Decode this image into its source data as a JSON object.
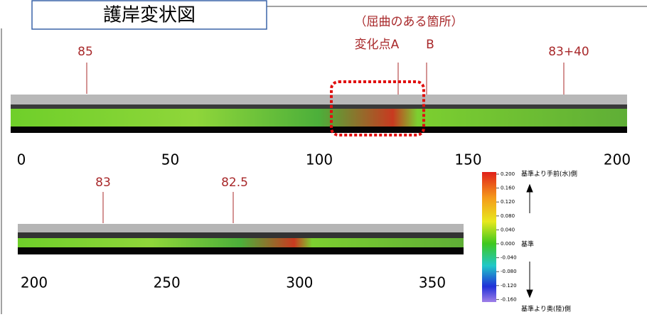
{
  "title": "護岸変状図",
  "bend_note": "（屈曲のある箇所）",
  "change_point_a": "変化点A",
  "change_point_b": "B",
  "strip1": {
    "stations": [
      "85",
      "83+40"
    ],
    "ticks": [
      0,
      50,
      100,
      150,
      200
    ]
  },
  "strip2": {
    "stations": [
      "83",
      "82.5"
    ],
    "ticks": [
      200,
      250,
      300,
      350
    ]
  },
  "colorbar": {
    "ticks": [
      "0.200",
      "0.160",
      "0.120",
      "0.080",
      "0.040",
      "0.000",
      "-0.040",
      "-0.080",
      "-0.120",
      "-0.160"
    ],
    "top_label": "基準より手前(水)側",
    "mid_label": "基準",
    "bottom_label": "基準より奥(陸)側"
  }
}
